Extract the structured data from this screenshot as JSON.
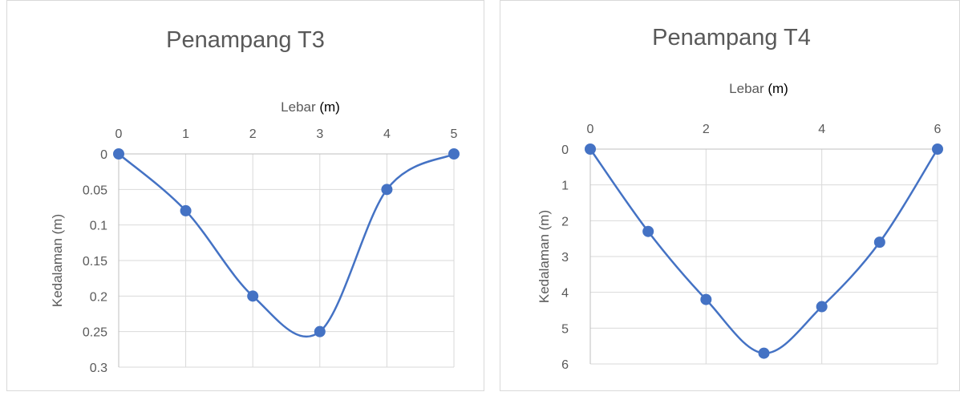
{
  "colors": {
    "series": "#4472C4",
    "grid": "#d9d9d9",
    "axis": "#bfbfbf",
    "text": "#595959",
    "title": "#595959"
  },
  "chart_data": [
    {
      "type": "scatter",
      "title": "Penampang T3",
      "xlabel": "Lebar",
      "xlabel_unit": "(m)",
      "ylabel": "Kedalaman (m)",
      "x_axis_position": "top",
      "y_reversed": true,
      "xlim": [
        0,
        5
      ],
      "ylim": [
        0,
        0.3
      ],
      "x_ticks": [
        "0",
        "1",
        "2",
        "3",
        "4",
        "5"
      ],
      "y_ticks": [
        "0",
        "0.05",
        "0.1",
        "0.15",
        "0.2",
        "0.25",
        "0.3"
      ],
      "grid": true,
      "smooth_line": true,
      "x": [
        0,
        1,
        2,
        3,
        4,
        5
      ],
      "y": [
        0,
        0.08,
        0.2,
        0.25,
        0.05,
        0
      ]
    },
    {
      "type": "scatter",
      "title": "Penampang T4",
      "xlabel": "Lebar",
      "xlabel_unit": "(m)",
      "ylabel": "Kedalaman (m)",
      "x_axis_position": "top",
      "y_reversed": true,
      "xlim": [
        0,
        6
      ],
      "ylim": [
        0,
        6
      ],
      "x_ticks": [
        "0",
        "2",
        "4",
        "6"
      ],
      "y_ticks": [
        "0",
        "1",
        "2",
        "3",
        "4",
        "5",
        "6"
      ],
      "grid": true,
      "smooth_line": true,
      "x": [
        0,
        1,
        2,
        3,
        4,
        5,
        6
      ],
      "y": [
        0,
        2.3,
        4.2,
        5.7,
        4.4,
        2.6,
        0
      ]
    }
  ]
}
